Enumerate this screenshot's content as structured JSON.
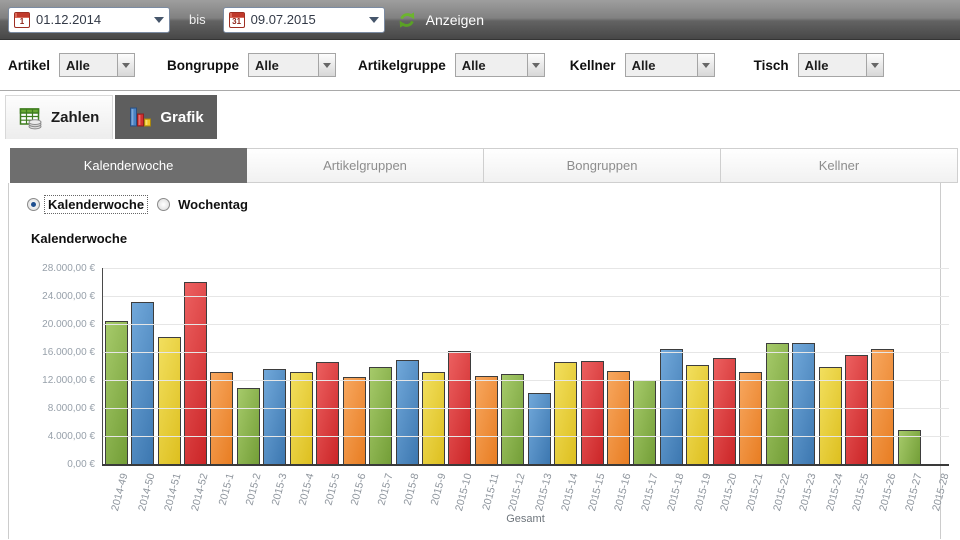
{
  "toolbar": {
    "date_from": "01.12.2014",
    "date_to": "09.07.2015",
    "bis_label": "bis",
    "anzeigen_label": "Anzeigen",
    "calendar_from_day": "1",
    "calendar_to_day": "31"
  },
  "filters": [
    {
      "label": "Artikel",
      "value": "Alle"
    },
    {
      "label": "Bongruppe",
      "value": "Alle"
    },
    {
      "label": "Artikelgruppe",
      "value": "Alle"
    },
    {
      "label": "Kellner",
      "value": "Alle"
    },
    {
      "label": "Tisch",
      "value": "Alle"
    }
  ],
  "main_tabs": [
    {
      "label": "Zahlen",
      "icon": "table-coins-icon",
      "active": false
    },
    {
      "label": "Grafik",
      "icon": "bar-chart-icon",
      "active": true
    }
  ],
  "sub_tabs": [
    {
      "label": "Kalenderwoche",
      "active": true
    },
    {
      "label": "Artikelgruppen",
      "active": false
    },
    {
      "label": "Bongruppen",
      "active": false
    },
    {
      "label": "Kellner",
      "active": false
    }
  ],
  "radios": [
    {
      "label": "Kalenderwoche",
      "checked": true
    },
    {
      "label": "Wochentag",
      "checked": false
    }
  ],
  "section_title": "Kalenderwoche",
  "chart_data": {
    "type": "bar",
    "title": "Kalenderwoche",
    "xlabel": "Gesamt",
    "ylabel": "",
    "ylim": [
      0,
      28000
    ],
    "ytick_step": 4000,
    "ytick_labels_bottom_to_top": [
      "0,00 €",
      "4.000,00 €",
      "8.000,00 €",
      "12.000,00 €",
      "16.000,00 €",
      "20.000,00 €",
      "24.000,00 €",
      "28.000,00 €"
    ],
    "grid": true,
    "legend": false,
    "categories": [
      "2014-49",
      "2014-50",
      "2014-51",
      "2014-52",
      "2015-1",
      "2015-2",
      "2015-3",
      "2015-4",
      "2015-5",
      "2015-6",
      "2015-7",
      "2015-8",
      "2015-9",
      "2015-10",
      "2015-11",
      "2015-12",
      "2015-13",
      "2015-14",
      "2015-15",
      "2015-16",
      "2015-17",
      "2015-18",
      "2015-19",
      "2015-20",
      "2015-21",
      "2015-22",
      "2015-23",
      "2015-24",
      "2015-25",
      "2015-26",
      "2015-27",
      "2015-28"
    ],
    "values": [
      20400,
      23100,
      18100,
      26000,
      13200,
      10800,
      13500,
      13100,
      14600,
      12400,
      13800,
      14900,
      13200,
      16100,
      12500,
      12900,
      10200,
      14500,
      14700,
      13300,
      12000,
      16400,
      14100,
      15200,
      13200,
      17300,
      17300,
      13900,
      15600,
      16400,
      4900,
      0
    ],
    "color_cycle": [
      "green",
      "blue",
      "yellow",
      "red",
      "orange"
    ],
    "colors": {
      "green": "#739e37",
      "blue": "#3c77b0",
      "yellow": "#ddbf1f",
      "red": "#cb2527",
      "orange": "#e87d22"
    }
  }
}
